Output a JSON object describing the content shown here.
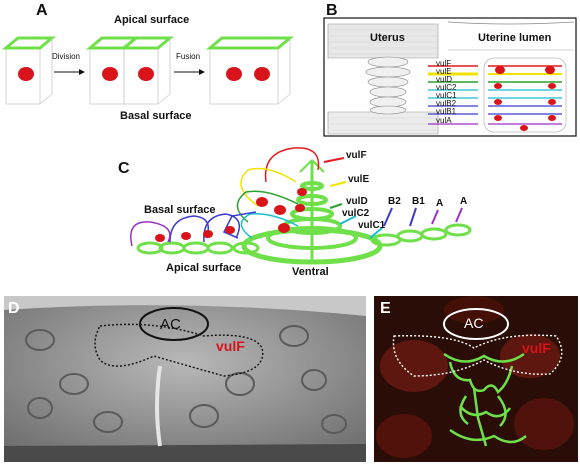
{
  "panels": {
    "A": {
      "label": "A",
      "apical_label": "Apical surface",
      "basal_label": "Basal  surface",
      "arrow1_label": "Division",
      "arrow2_label": "Fusion"
    },
    "B": {
      "label": "B",
      "left_title": "Uterus",
      "right_title": "Uterine lumen",
      "rings": [
        "vulF",
        "vulE",
        "vulD",
        "vulC2",
        "vulC1",
        "vulB2",
        "vulB1",
        "vulA"
      ],
      "ring_colors": [
        "#e41a1c",
        "#f2e200",
        "#2ca02c",
        "#17becf",
        "#17becf",
        "#3b3bd1",
        "#3b3bd1",
        "#9b30c0"
      ]
    },
    "C": {
      "label": "C",
      "basal_label": "Basal  surface",
      "apical_label": "Apical surface",
      "ventral_label": "Ventral",
      "ring_labels": {
        "vulF": "vulF",
        "vulE": "vulE",
        "vulD": "vulD",
        "vulC2": "vulC2",
        "vulC1": "vulC1"
      },
      "letter_labels": [
        "B2",
        "B1",
        "A",
        "A"
      ]
    },
    "D": {
      "label": "D",
      "ac_label": "AC",
      "vulf_label": "vulF"
    },
    "E": {
      "label": "E",
      "ac_label": "AC",
      "vulf_label": "vulF"
    }
  },
  "colors": {
    "green": "#6fe04a",
    "red": "#d8141a",
    "vulF": "#e41a1c",
    "vulE": "#f2e200",
    "vulD": "#2ca02c",
    "vulC": "#17becf",
    "vulB": "#3b3bd1",
    "vulA": "#9b30c0"
  }
}
